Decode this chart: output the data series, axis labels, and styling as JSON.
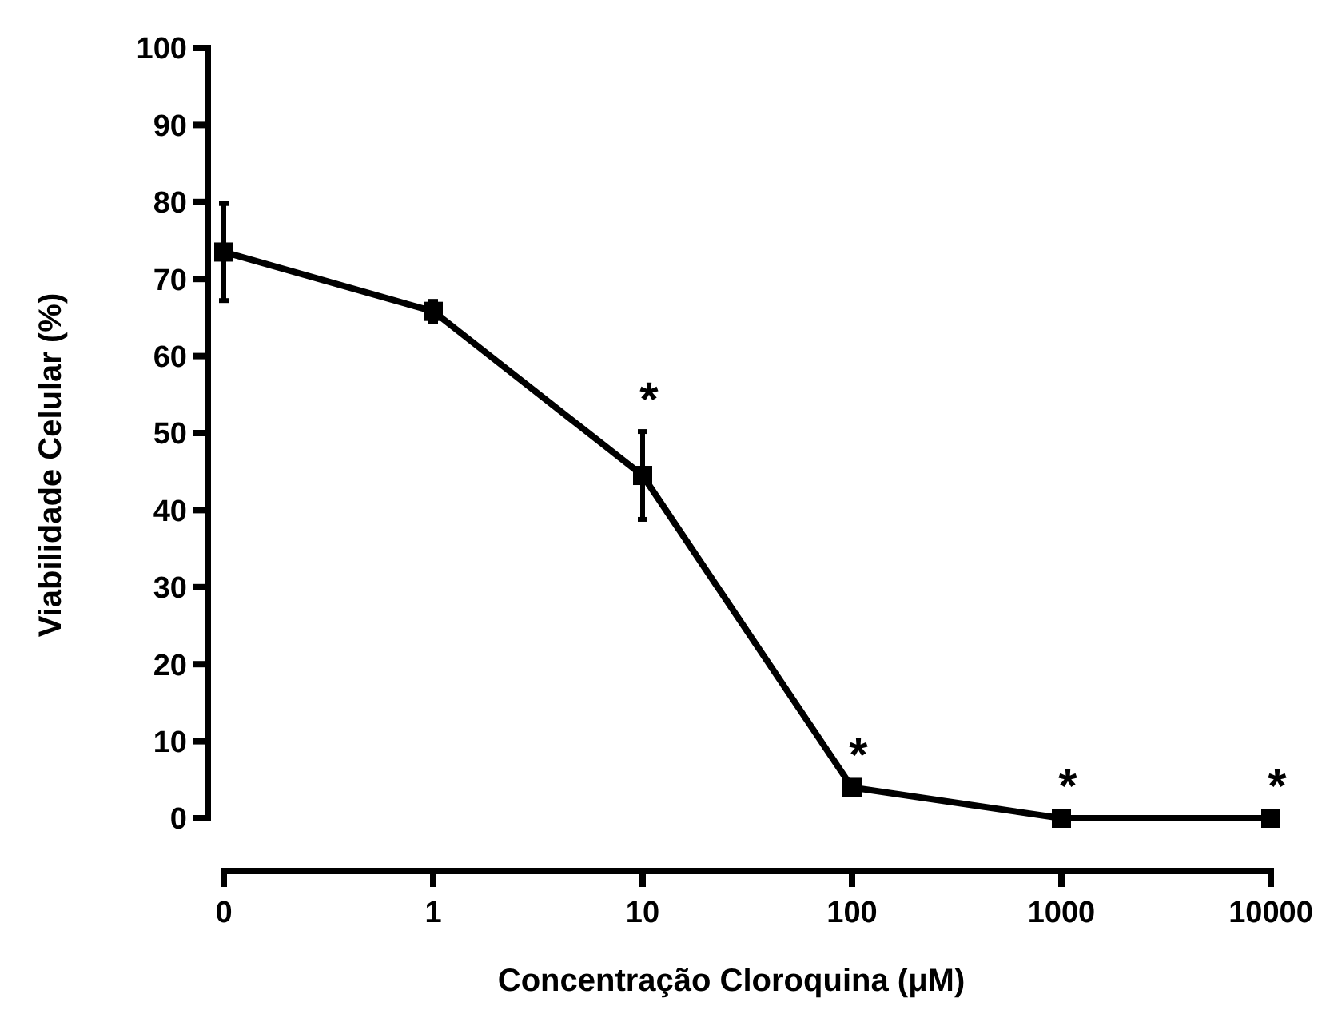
{
  "chart_data": {
    "type": "line",
    "xlabel": "Concentração Cloroquina (μM)",
    "ylabel": "Viabilidade Celular (%)",
    "categories": [
      "0",
      "1",
      "10",
      "100",
      "1000",
      "10000"
    ],
    "series": [
      {
        "color": "#000000",
        "values": [
          73.5,
          65.8,
          44.5,
          4.0,
          0,
          0
        ],
        "errors": [
          6.3,
          1.3,
          5.7,
          null,
          null,
          null
        ]
      }
    ],
    "ylim": [
      0,
      100
    ],
    "yticks": [
      0,
      10,
      20,
      30,
      40,
      50,
      60,
      70,
      80,
      90,
      100
    ],
    "marker": "square",
    "line_style": "solid",
    "annotations": [
      {
        "text": "*",
        "x": "10",
        "y": 50.2
      },
      {
        "text": "*",
        "x": "100",
        "y": 4.0
      },
      {
        "text": "*",
        "x": "1000",
        "y": 0
      },
      {
        "text": "*",
        "x": "10000",
        "y": 0
      }
    ]
  }
}
